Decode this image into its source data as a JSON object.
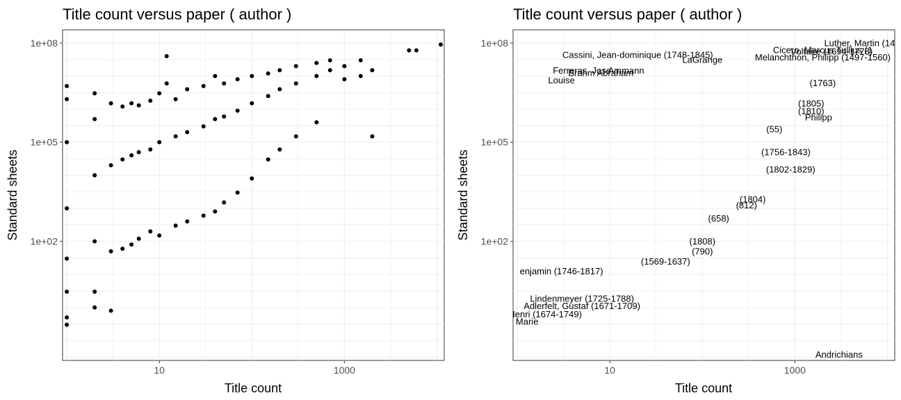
{
  "chart_data": [
    {
      "type": "scatter",
      "title": "Title count versus paper ( author )",
      "xlabel": "Title count",
      "ylabel": "Standard sheets",
      "x_scale": "log10",
      "y_scale": "log10",
      "xlim": [
        0.9,
        12000
      ],
      "ylim": [
        0.025,
        250000000
      ],
      "x_ticks": [
        {
          "value": 10,
          "label": "10"
        },
        {
          "value": 1000,
          "label": "1000"
        }
      ],
      "y_ticks": [
        {
          "value": 100,
          "label": "1e+02"
        },
        {
          "value": 100000,
          "label": "1e+05"
        },
        {
          "value": 100000000,
          "label": "1e+08"
        }
      ],
      "grid": true,
      "point_color": "#000000",
      "points": [
        [
          1,
          5000000
        ],
        [
          1,
          2000000
        ],
        [
          1,
          100000
        ],
        [
          1,
          1000
        ],
        [
          1,
          30
        ],
        [
          1,
          3
        ],
        [
          1,
          0.5
        ],
        [
          1,
          0.3
        ],
        [
          2,
          3000000
        ],
        [
          2,
          500000
        ],
        [
          2,
          10000
        ],
        [
          2,
          100
        ],
        [
          2,
          3
        ],
        [
          2,
          1
        ],
        [
          3,
          1500000
        ],
        [
          3,
          20000
        ],
        [
          3,
          50
        ],
        [
          3,
          0.8
        ],
        [
          4,
          1200000
        ],
        [
          4,
          30000
        ],
        [
          4,
          60
        ],
        [
          5,
          1500000
        ],
        [
          5,
          40000
        ],
        [
          5,
          80
        ],
        [
          6,
          1300000
        ],
        [
          6,
          50000
        ],
        [
          6,
          120
        ],
        [
          8,
          1800000
        ],
        [
          8,
          60000
        ],
        [
          8,
          200
        ],
        [
          10,
          3000000
        ],
        [
          10,
          100000
        ],
        [
          10,
          150
        ],
        [
          12,
          6000000
        ],
        [
          12,
          40000000
        ],
        [
          15,
          2000000
        ],
        [
          15,
          150000
        ],
        [
          15,
          300
        ],
        [
          20,
          4000000
        ],
        [
          20,
          200000
        ],
        [
          20,
          400
        ],
        [
          30,
          5000000
        ],
        [
          30,
          300000
        ],
        [
          30,
          600
        ],
        [
          40,
          10000000
        ],
        [
          40,
          500000
        ],
        [
          40,
          800
        ],
        [
          50,
          6000000
        ],
        [
          50,
          600000
        ],
        [
          50,
          1500
        ],
        [
          70,
          8000000
        ],
        [
          70,
          900000
        ],
        [
          70,
          3000
        ],
        [
          100,
          10000000
        ],
        [
          100,
          1500000
        ],
        [
          100,
          8000
        ],
        [
          150,
          12000000
        ],
        [
          150,
          2500000
        ],
        [
          150,
          30000
        ],
        [
          200,
          15000000
        ],
        [
          200,
          4000000
        ],
        [
          200,
          60000
        ],
        [
          300,
          20000000
        ],
        [
          300,
          6000000
        ],
        [
          300,
          150000
        ],
        [
          500,
          25000000
        ],
        [
          500,
          10000000
        ],
        [
          500,
          400000
        ],
        [
          700,
          30000000
        ],
        [
          700,
          15000000
        ],
        [
          1000,
          20000000
        ],
        [
          1000,
          8000000
        ],
        [
          1500,
          30000000
        ],
        [
          1500,
          10000000
        ],
        [
          2000,
          15000000
        ],
        [
          2000,
          150000
        ],
        [
          5000,
          60000000
        ],
        [
          6000,
          60000000
        ],
        [
          11000,
          90000000
        ]
      ]
    },
    {
      "type": "scatter",
      "title": "Title count versus paper ( author )",
      "xlabel": "Title count",
      "ylabel": "Standard sheets",
      "x_scale": "log10",
      "y_scale": "log10",
      "xlim": [
        0.9,
        12000
      ],
      "ylim": [
        0.025,
        250000000
      ],
      "x_ticks": [
        {
          "value": 10,
          "label": "10"
        },
        {
          "value": 1000,
          "label": "1000"
        }
      ],
      "y_ticks": [
        {
          "value": 100,
          "label": "1e+02"
        },
        {
          "value": 100000,
          "label": "1e+05"
        },
        {
          "value": 100000000,
          "label": "1e+08"
        }
      ],
      "grid": true,
      "labeled_points": [
        {
          "x": 5000,
          "y": 80000000,
          "label": "Luther, Martin (14"
        },
        {
          "x": 2000,
          "y": 50000000,
          "label": "Cicero, Marcus Tullius (1"
        },
        {
          "x": 2500,
          "y": 45000000,
          "label": "Voltaire (1694-1778)"
        },
        {
          "x": 20,
          "y": 35000000,
          "label": "Cassini, Jean-dominique (1748-1845)"
        },
        {
          "x": 2000,
          "y": 30000000,
          "label": "Melanchthon, Philipp (1497-1560)"
        },
        {
          "x": 100,
          "y": 25000000,
          "label": "LaGrange"
        },
        {
          "x": 5,
          "y": 12000000,
          "label": "Ferreras, Jose"
        },
        {
          "x": 15,
          "y": 12000000,
          "label": "Ammann"
        },
        {
          "x": 8,
          "y": 10000000,
          "label": "Brahm Abraham"
        },
        {
          "x": 3,
          "y": 6000000,
          "label": "Louise"
        },
        {
          "x": 2000,
          "y": 5000000,
          "label": "(1763)"
        },
        {
          "x": 1500,
          "y": 1200000,
          "label": "(1805)"
        },
        {
          "x": 1500,
          "y": 700000,
          "label": "(1810)"
        },
        {
          "x": 1800,
          "y": 450000,
          "label": "Philipp"
        },
        {
          "x": 600,
          "y": 200000,
          "label": "(55)"
        },
        {
          "x": 800,
          "y": 40000,
          "label": "(1756-1843)"
        },
        {
          "x": 900,
          "y": 12000,
          "label": "(1802-1829)"
        },
        {
          "x": 350,
          "y": 1500,
          "label": "(1804)"
        },
        {
          "x": 300,
          "y": 1000,
          "label": "(812)"
        },
        {
          "x": 150,
          "y": 400,
          "label": "(658)"
        },
        {
          "x": 100,
          "y": 80,
          "label": "(1808)"
        },
        {
          "x": 100,
          "y": 40,
          "label": "(790)"
        },
        {
          "x": 40,
          "y": 20,
          "label": "(1569-1637)"
        },
        {
          "x": 3,
          "y": 10,
          "label": "enjamin (1746-1817)"
        },
        {
          "x": 5,
          "y": 1.5,
          "label": "Lindenmeyer (1725-1788)"
        },
        {
          "x": 5,
          "y": 0.9,
          "label": "Adlerfelt, Gustaf (1671-1709)"
        },
        {
          "x": 2,
          "y": 0.5,
          "label": "Henri (1674-1749)"
        },
        {
          "x": 1,
          "y": 0.3,
          "label": "nce, Marie"
        },
        {
          "x": 3000,
          "y": 0.03,
          "label": "Andrichians"
        }
      ]
    }
  ]
}
